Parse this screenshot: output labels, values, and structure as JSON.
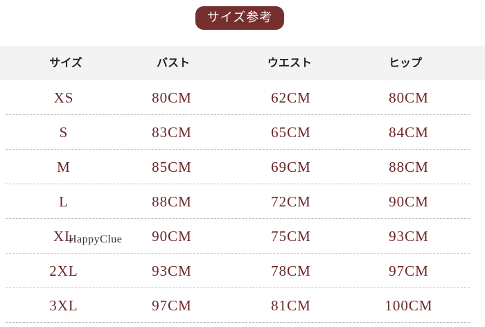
{
  "title": "サイズ参考",
  "colors": {
    "accent": "#762f2f",
    "text": "#6b2626",
    "header_bg": "#f3f3f3"
  },
  "headers": [
    "サイズ",
    "バスト",
    "ウエスト",
    "ヒップ"
  ],
  "rows": [
    [
      "XS",
      "80CM",
      "62CM",
      "80CM"
    ],
    [
      "S",
      "83CM",
      "65CM",
      "84CM"
    ],
    [
      "M",
      "85CM",
      "69CM",
      "88CM"
    ],
    [
      "L",
      "88CM",
      "72CM",
      "90CM"
    ],
    [
      "XL",
      "90CM",
      "75CM",
      "93CM"
    ],
    [
      "2XL",
      "93CM",
      "78CM",
      "97CM"
    ],
    [
      "3XL",
      "97CM",
      "81CM",
      "100CM"
    ]
  ],
  "watermark": "HappyClue"
}
